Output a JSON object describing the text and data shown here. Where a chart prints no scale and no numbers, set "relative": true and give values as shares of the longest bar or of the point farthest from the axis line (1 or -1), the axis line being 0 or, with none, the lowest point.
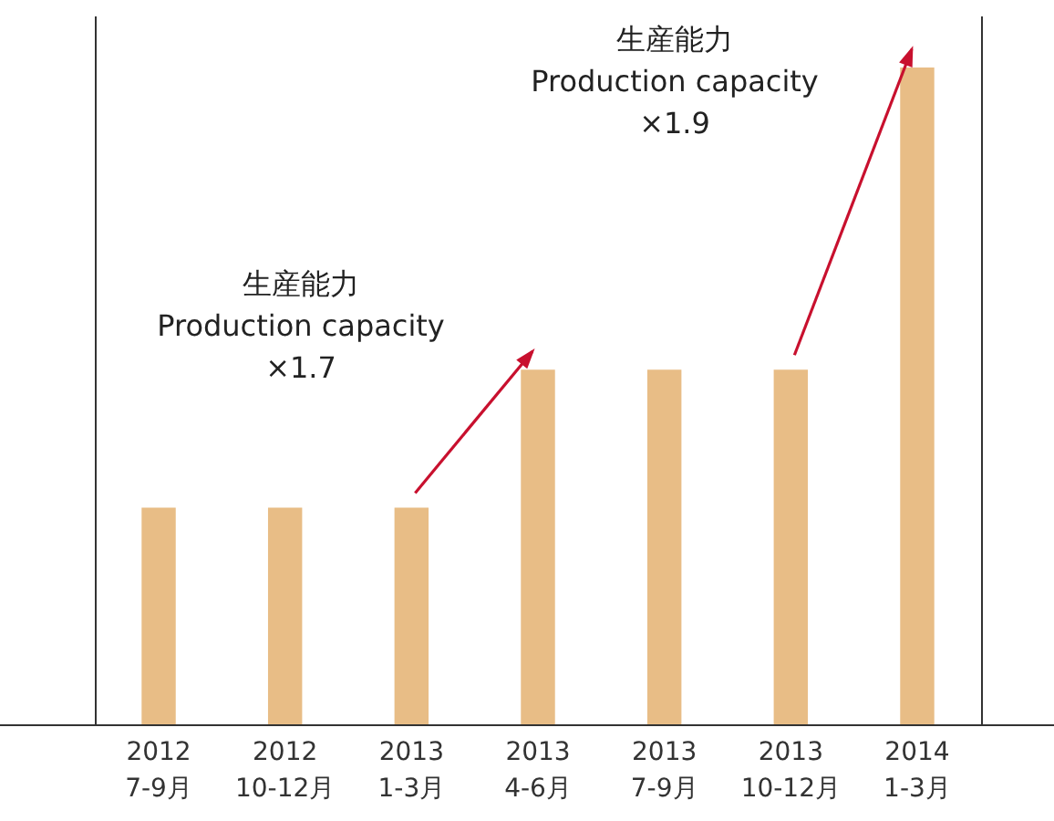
{
  "chart_data": {
    "type": "bar",
    "relative": true,
    "categories": [
      "2012\n7-9月",
      "2012\n10-12月",
      "2013\n1-3月",
      "2013\n4-6月",
      "2013\n7-9月",
      "2013\n10-12月",
      "2014\n1-3月"
    ],
    "values": [
      0.33,
      0.33,
      0.33,
      0.54,
      0.54,
      0.54,
      1
    ],
    "color": "#e8bd86",
    "annotations": [
      "生産能力\nProduction capacity\n×1.7",
      "生産能力\nProduction capacity\n×1.9"
    ]
  }
}
